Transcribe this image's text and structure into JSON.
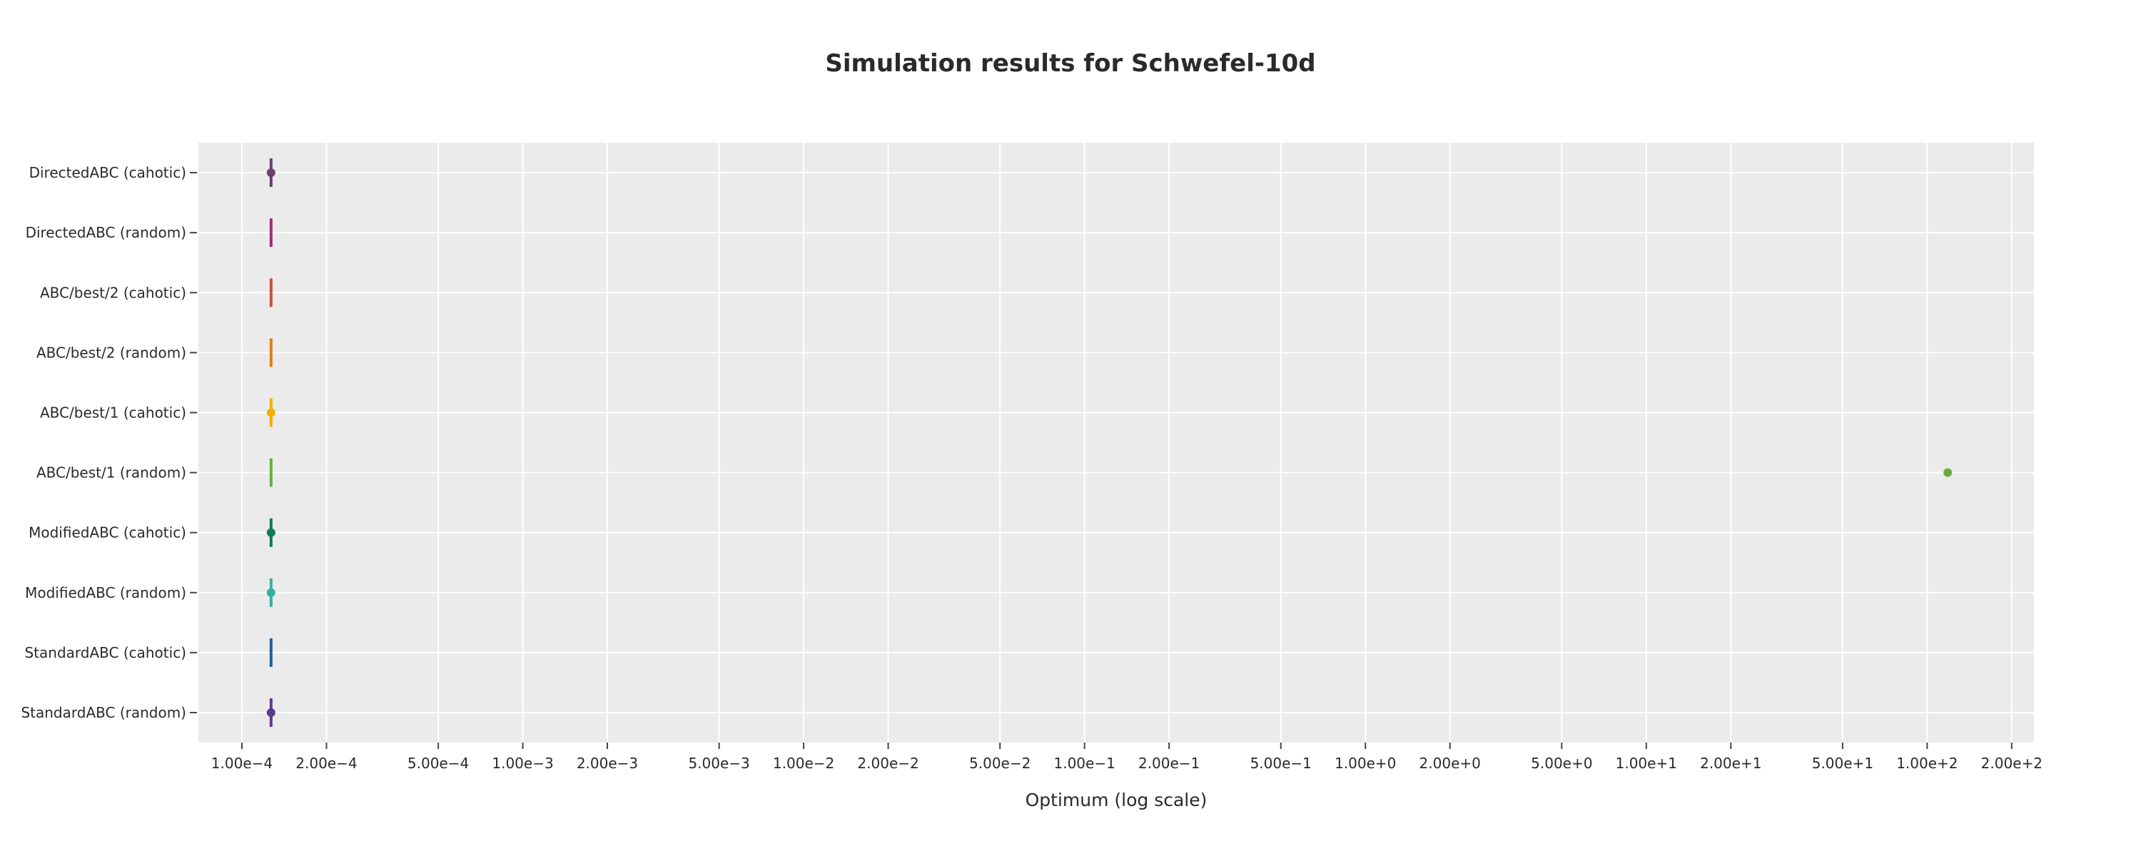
{
  "chart_data": {
    "type": "box",
    "title": "Simulation results for Schwefel-10d",
    "xlabel": "Optimum (log scale)",
    "ylabel": "",
    "x_scale": "log",
    "xlim": [
      7e-05,
      240.0
    ],
    "grid": true,
    "x_ticks": [
      {
        "value": 0.0001,
        "label": "1.00e−4"
      },
      {
        "value": 0.0002,
        "label": "2.00e−4"
      },
      {
        "value": 0.0005,
        "label": "5.00e−4"
      },
      {
        "value": 0.001,
        "label": "1.00e−3"
      },
      {
        "value": 0.002,
        "label": "2.00e−3"
      },
      {
        "value": 0.005,
        "label": "5.00e−3"
      },
      {
        "value": 0.01,
        "label": "1.00e−2"
      },
      {
        "value": 0.02,
        "label": "2.00e−2"
      },
      {
        "value": 0.05,
        "label": "5.00e−2"
      },
      {
        "value": 0.1,
        "label": "1.00e−1"
      },
      {
        "value": 0.2,
        "label": "2.00e−1"
      },
      {
        "value": 0.5,
        "label": "5.00e−1"
      },
      {
        "value": 1,
        "label": "1.00e+0"
      },
      {
        "value": 2,
        "label": "2.00e+0"
      },
      {
        "value": 5,
        "label": "5.00e+0"
      },
      {
        "value": 10,
        "label": "1.00e+1"
      },
      {
        "value": 20,
        "label": "2.00e+1"
      },
      {
        "value": 50,
        "label": "5.00e+1"
      },
      {
        "value": 100,
        "label": "1.00e+2"
      },
      {
        "value": 200,
        "label": "2.00e+2"
      }
    ],
    "categories": [
      "DirectedABC (cahotic)",
      "DirectedABC (random)",
      "ABC/best/2 (cahotic)",
      "ABC/best/2 (random)",
      "ABC/best/1 (cahotic)",
      "ABC/best/1 (random)",
      "ModifiedABC (cahotic)",
      "ModifiedABC (random)",
      "StandardABC (cahotic)",
      "StandardABC (random)"
    ],
    "series": [
      {
        "category": "DirectedABC (cahotic)",
        "center": 0.000127,
        "color": "#6b3f6e",
        "marker": true,
        "outliers": []
      },
      {
        "category": "DirectedABC (random)",
        "center": 0.000127,
        "color": "#9c2f6e",
        "marker": false,
        "outliers": []
      },
      {
        "category": "ABC/best/2 (cahotic)",
        "center": 0.000127,
        "color": "#c94f3d",
        "marker": false,
        "outliers": []
      },
      {
        "category": "ABC/best/2 (random)",
        "center": 0.000127,
        "color": "#e07b1a",
        "marker": false,
        "outliers": []
      },
      {
        "category": "ABC/best/1 (cahotic)",
        "center": 0.000127,
        "color": "#f0b000",
        "marker": true,
        "outliers": []
      },
      {
        "category": "ABC/best/1 (random)",
        "center": 0.000127,
        "color": "#6aab3e",
        "marker": false,
        "outliers": [
          118.4
        ]
      },
      {
        "category": "ModifiedABC (cahotic)",
        "center": 0.000127,
        "color": "#0f7a55",
        "marker": true,
        "outliers": []
      },
      {
        "category": "ModifiedABC (random)",
        "center": 0.000127,
        "color": "#34b0a3",
        "marker": true,
        "outliers": []
      },
      {
        "category": "StandardABC (cahotic)",
        "center": 0.000127,
        "color": "#1f5f9c",
        "marker": false,
        "outliers": []
      },
      {
        "category": "StandardABC (random)",
        "center": 0.000127,
        "color": "#5a3c8c",
        "marker": true,
        "outliers": []
      }
    ]
  }
}
